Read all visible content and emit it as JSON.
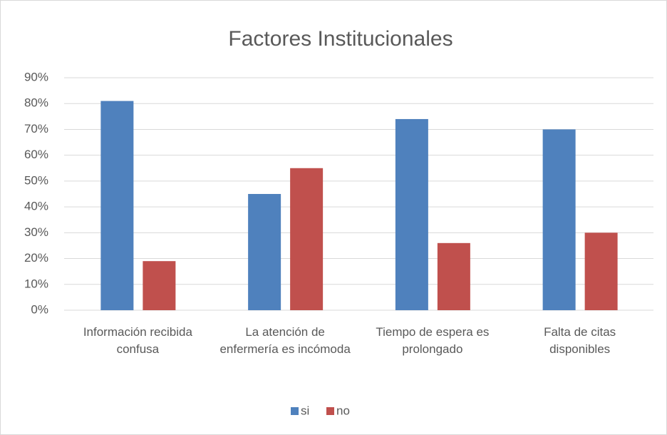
{
  "chart_data": {
    "type": "bar",
    "title": "Factores Institucionales",
    "categories": [
      "Información recibida confusa",
      "La atención de enfermería es incómoda",
      "Tiempo de espera es prolongado",
      "Falta de citas disponibles"
    ],
    "series": [
      {
        "name": "si",
        "color": "#4f81bd",
        "values": [
          81,
          45,
          74,
          70
        ]
      },
      {
        "name": "no",
        "color": "#c0504d",
        "values": [
          19,
          55,
          26,
          30
        ]
      }
    ],
    "ylim": [
      0,
      90
    ],
    "yticks": [
      {
        "value": 0,
        "label": "0%"
      },
      {
        "value": 10,
        "label": "10%"
      },
      {
        "value": 20,
        "label": "20%"
      },
      {
        "value": 30,
        "label": "30%"
      },
      {
        "value": 40,
        "label": "40%"
      },
      {
        "value": 50,
        "label": "50%"
      },
      {
        "value": 60,
        "label": "60%"
      },
      {
        "value": 70,
        "label": "70%"
      },
      {
        "value": 80,
        "label": "80%"
      },
      {
        "value": 90,
        "label": "90%"
      }
    ],
    "grid": true,
    "legend": "bottom"
  }
}
